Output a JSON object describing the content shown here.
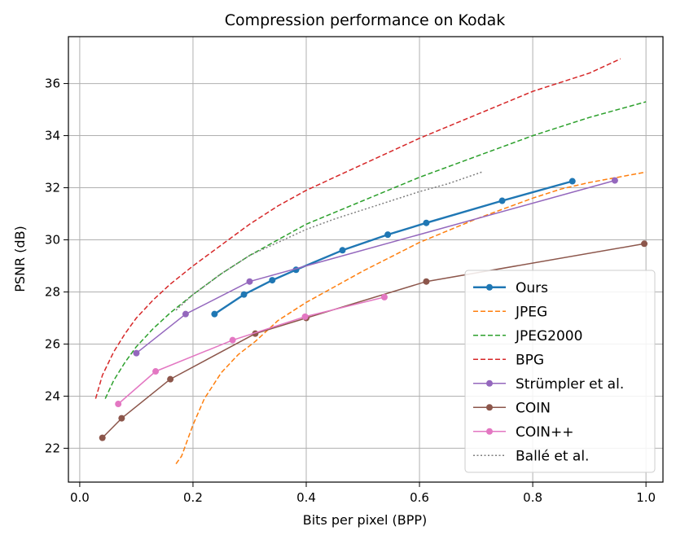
{
  "chart_data": {
    "type": "line",
    "title": "Compression performance on Kodak",
    "xlabel": "Bits per pixel (BPP)",
    "ylabel": "PSNR (dB)",
    "xlim": [
      -0.02,
      1.03
    ],
    "ylim": [
      20.7,
      37.8
    ],
    "xticks": [
      0.0,
      0.2,
      0.4,
      0.6,
      0.8,
      1.0
    ],
    "xtick_labels": [
      "0.0",
      "0.2",
      "0.4",
      "0.6",
      "0.8",
      "1.0"
    ],
    "yticks": [
      22,
      24,
      26,
      28,
      30,
      32,
      34,
      36
    ],
    "ytick_labels": [
      "22",
      "24",
      "26",
      "28",
      "30",
      "32",
      "34",
      "36"
    ],
    "grid": true,
    "legend_position": "bottom-right",
    "series": [
      {
        "name": "Ours",
        "color": "#1f77b4",
        "style": "solid",
        "marker": true,
        "width": 2.4,
        "x": [
          0.238,
          0.29,
          0.34,
          0.382,
          0.464,
          0.544,
          0.612,
          0.746,
          0.87
        ],
        "y": [
          27.15,
          27.9,
          28.45,
          28.85,
          29.6,
          30.2,
          30.65,
          31.5,
          32.25
        ]
      },
      {
        "name": "JPEG",
        "color": "#ff7f0e",
        "style": "dashed",
        "marker": false,
        "width": 1.5,
        "x": [
          0.17,
          0.18,
          0.2,
          0.22,
          0.25,
          0.28,
          0.31,
          0.35,
          0.4,
          0.45,
          0.5,
          0.55,
          0.6,
          0.65,
          0.7,
          0.75,
          0.8,
          0.85,
          0.9,
          0.95,
          1.0
        ],
        "y": [
          21.4,
          21.7,
          22.9,
          23.9,
          24.9,
          25.6,
          26.1,
          26.9,
          27.6,
          28.2,
          28.8,
          29.35,
          29.9,
          30.35,
          30.8,
          31.2,
          31.6,
          31.95,
          32.2,
          32.4,
          32.6
        ]
      },
      {
        "name": "JPEG2000",
        "color": "#2ca02c",
        "style": "dashed",
        "marker": false,
        "width": 1.5,
        "x": [
          0.045,
          0.06,
          0.08,
          0.1,
          0.13,
          0.16,
          0.2,
          0.25,
          0.3,
          0.35,
          0.4,
          0.5,
          0.6,
          0.7,
          0.8,
          0.9,
          1.0
        ],
        "y": [
          23.9,
          24.6,
          25.3,
          25.9,
          26.6,
          27.2,
          27.9,
          28.7,
          29.4,
          30.0,
          30.6,
          31.5,
          32.4,
          33.2,
          34.0,
          34.7,
          35.3
        ]
      },
      {
        "name": "BPG",
        "color": "#d62728",
        "style": "dashed",
        "marker": false,
        "width": 1.5,
        "x": [
          0.028,
          0.04,
          0.06,
          0.08,
          0.1,
          0.13,
          0.16,
          0.2,
          0.25,
          0.3,
          0.35,
          0.4,
          0.5,
          0.6,
          0.7,
          0.8,
          0.9,
          0.955
        ],
        "y": [
          23.9,
          24.8,
          25.7,
          26.4,
          27.0,
          27.7,
          28.3,
          29.0,
          29.8,
          30.6,
          31.3,
          31.9,
          32.9,
          33.9,
          34.8,
          35.7,
          36.4,
          36.95
        ]
      },
      {
        "name": "Strümpler et al.",
        "color": "#9467bd",
        "style": "solid",
        "marker": true,
        "width": 1.5,
        "x": [
          0.1,
          0.187,
          0.3,
          0.945
        ],
        "y": [
          25.65,
          27.15,
          28.4,
          32.28
        ]
      },
      {
        "name": "COIN",
        "color": "#8c564b",
        "style": "solid",
        "marker": true,
        "width": 1.5,
        "x": [
          0.04,
          0.074,
          0.16,
          0.31,
          0.4,
          0.612,
          0.997
        ],
        "y": [
          22.4,
          23.15,
          24.65,
          26.4,
          27.0,
          28.4,
          29.85
        ]
      },
      {
        "name": "COIN++",
        "color": "#e377c2",
        "style": "solid",
        "marker": true,
        "width": 1.5,
        "x": [
          0.068,
          0.134,
          0.27,
          0.398,
          0.538
        ],
        "y": [
          23.7,
          24.95,
          26.15,
          27.05,
          27.8
        ]
      },
      {
        "name": "Ballé et al.",
        "color": "#7f7f7f",
        "style": "dotted",
        "marker": false,
        "width": 1.5,
        "x": [
          0.17,
          0.2,
          0.25,
          0.3,
          0.35,
          0.4,
          0.45,
          0.5,
          0.55,
          0.6,
          0.65,
          0.71
        ],
        "y": [
          27.3,
          27.9,
          28.7,
          29.4,
          29.9,
          30.4,
          30.8,
          31.15,
          31.5,
          31.85,
          32.15,
          32.6
        ]
      }
    ]
  }
}
